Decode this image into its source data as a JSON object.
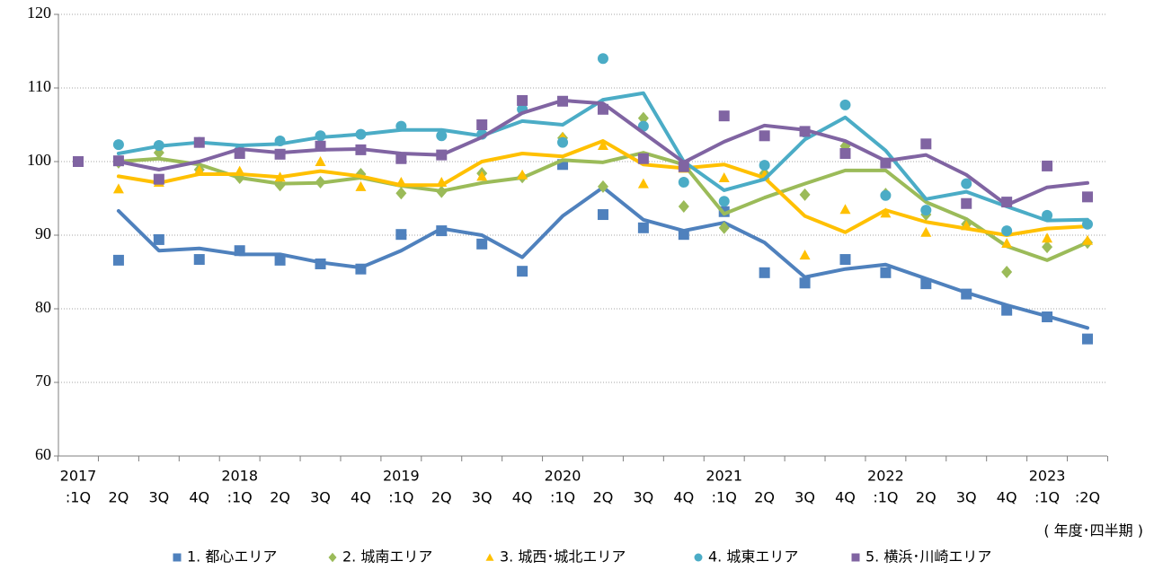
{
  "chart_data": {
    "type": "line",
    "categories": [
      ":1Q",
      "2Q",
      "3Q",
      "4Q",
      ":1Q",
      "2Q",
      "3Q",
      "4Q",
      ":1Q",
      "2Q",
      "3Q",
      "4Q",
      ":1Q",
      "2Q",
      "3Q",
      "4Q",
      ":1Q",
      "2Q",
      "3Q",
      "4Q",
      ":1Q",
      "2Q",
      "3Q",
      "4Q",
      ":1Q",
      ":2Q"
    ],
    "year_labels": [
      "2017",
      null,
      null,
      null,
      "2018",
      null,
      null,
      null,
      "2019",
      null,
      null,
      null,
      "2020",
      null,
      null,
      null,
      "2021",
      null,
      null,
      null,
      "2022",
      null,
      null,
      null,
      "2023",
      null
    ],
    "x_label": "( 年度･四半期 )",
    "ylim": [
      60,
      120
    ],
    "yticks": [
      60,
      70,
      80,
      90,
      100,
      110,
      120
    ],
    "grid": true,
    "legend": "bottom",
    "series": [
      {
        "name": "1. 都心エリア",
        "color": "#4f81bd",
        "marker": "square",
        "values": [
          null,
          86.6,
          89.4,
          86.7,
          87.9,
          86.6,
          86.1,
          85.4,
          90.1,
          90.6,
          88.8,
          85.1,
          99.6,
          92.8,
          91.0,
          90.1,
          93.2,
          84.9,
          83.5,
          86.7,
          84.9,
          83.4,
          82.0,
          79.8,
          78.9,
          75.9
        ],
        "trend": [
          null,
          93.3,
          87.9,
          88.2,
          87.4,
          87.4,
          86.3,
          85.6,
          87.9,
          90.9,
          90.0,
          87.0,
          92.6,
          96.5,
          92.1,
          90.6,
          91.7,
          89.0,
          84.3,
          85.4,
          86.0,
          84.1,
          82.2,
          80.5,
          79.0,
          77.4
        ]
      },
      {
        "name": "2. 城南エリア",
        "color": "#9bbb59",
        "marker": "diamond",
        "values": [
          null,
          99.9,
          101.2,
          98.9,
          97.8,
          96.8,
          97.2,
          98.3,
          95.7,
          95.9,
          98.4,
          97.9,
          103.2,
          96.6,
          105.9,
          93.9,
          91.0,
          98.4,
          95.5,
          102.1,
          95.6,
          92.8,
          91.5,
          85.0,
          88.4,
          89.0
        ],
        "trend": [
          null,
          100.0,
          100.4,
          99.6,
          97.8,
          97.0,
          97.1,
          97.8,
          96.7,
          96.0,
          97.1,
          97.8,
          100.2,
          99.9,
          101.2,
          99.6,
          92.9,
          95.1,
          97.0,
          98.8,
          98.8,
          94.5,
          92.2,
          88.5,
          86.6,
          89.0
        ]
      },
      {
        "name": "3. 城西･城北エリア",
        "color": "#ffc000",
        "marker": "triangle",
        "values": [
          null,
          96.3,
          97.2,
          98.8,
          98.7,
          97.9,
          100.0,
          96.6,
          97.2,
          97.2,
          98.0,
          98.2,
          103.3,
          102.2,
          97.0,
          99.1,
          97.8,
          98.2,
          87.3,
          93.5,
          93.0,
          90.4,
          91.3,
          88.9,
          89.6,
          89.3
        ],
        "trend": [
          null,
          98.0,
          97.1,
          98.3,
          98.3,
          97.9,
          98.7,
          98.0,
          96.8,
          96.8,
          100.0,
          101.1,
          100.7,
          102.8,
          99.6,
          99.1,
          99.6,
          97.8,
          92.6,
          90.4,
          93.4,
          91.8,
          90.9,
          90.0,
          90.9,
          91.2
        ]
      },
      {
        "name": "4. 城東エリア",
        "color": "#4bacc6",
        "marker": "circle",
        "values": [
          null,
          102.3,
          102.2,
          102.6,
          101.5,
          102.8,
          103.5,
          103.7,
          104.8,
          103.5,
          103.7,
          107.1,
          102.6,
          114.0,
          104.8,
          97.2,
          94.6,
          99.5,
          104.0,
          107.7,
          95.4,
          93.4,
          97.0,
          90.6,
          92.7,
          91.5
        ],
        "trend": [
          null,
          101.1,
          102.1,
          102.6,
          102.2,
          102.4,
          103.3,
          103.7,
          104.3,
          104.3,
          103.5,
          105.5,
          105.0,
          108.4,
          109.3,
          100.0,
          96.1,
          97.6,
          103.0,
          106.0,
          101.5,
          94.9,
          95.9,
          93.9,
          92.0,
          92.1
        ]
      },
      {
        "name": "5. 横浜･川崎エリア",
        "color": "#8064a2",
        "marker": "square",
        "values": [
          100.0,
          100.1,
          97.6,
          102.6,
          101.1,
          101.0,
          102.1,
          101.6,
          100.4,
          100.9,
          105.0,
          108.3,
          108.2,
          107.1,
          100.4,
          99.3,
          106.2,
          103.5,
          104.1,
          101.1,
          99.8,
          102.4,
          94.3,
          94.5,
          99.4,
          95.2
        ],
        "trend": [
          null,
          100.0,
          98.9,
          100.0,
          101.7,
          101.2,
          101.6,
          101.7,
          101.1,
          100.9,
          103.3,
          106.6,
          108.3,
          107.9,
          103.9,
          99.9,
          102.7,
          104.9,
          104.3,
          102.8,
          100.1,
          100.9,
          98.2,
          94.1,
          96.5,
          97.1
        ]
      }
    ]
  }
}
